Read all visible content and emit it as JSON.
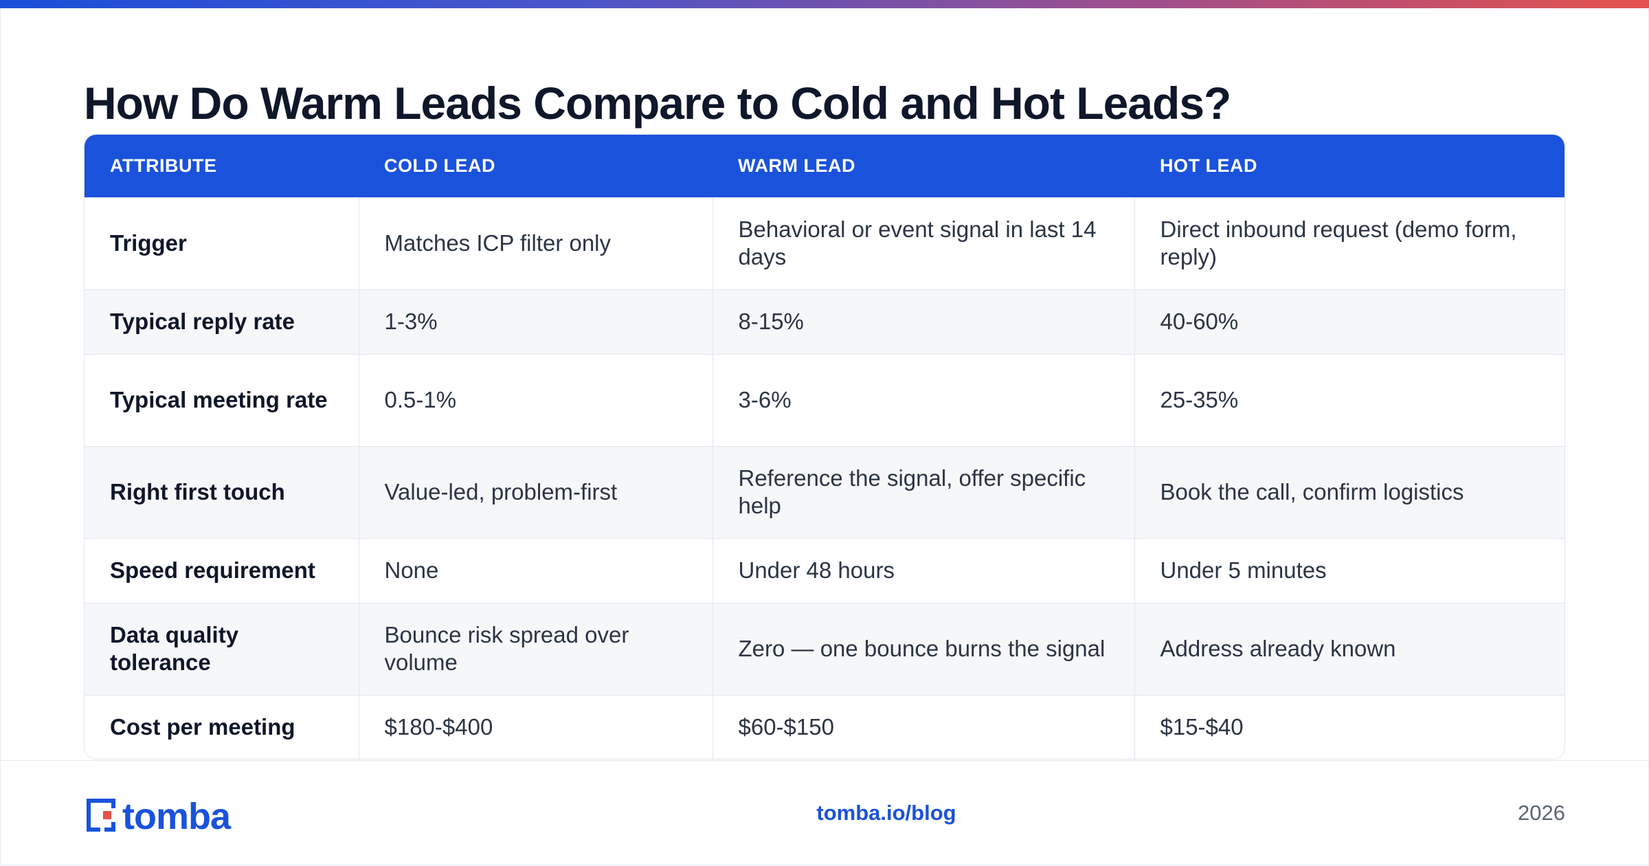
{
  "title": "How Do Warm Leads Compare to Cold and Hot Leads?",
  "table": {
    "headers": [
      "ATTRIBUTE",
      "COLD LEAD",
      "WARM LEAD",
      "HOT LEAD"
    ],
    "rows": [
      [
        "Trigger",
        "Matches ICP filter only",
        "Behavioral or event signal in last 14 days",
        "Direct inbound request (demo form, reply)"
      ],
      [
        "Typical reply rate",
        "1-3%",
        "8-15%",
        "40-60%"
      ],
      [
        "Typical meeting rate",
        "0.5-1%",
        "3-6%",
        "25-35%"
      ],
      [
        "Right first touch",
        "Value-led, problem-first",
        "Reference the signal, offer specific help",
        "Book the call, confirm logistics"
      ],
      [
        "Speed requirement",
        "None",
        "Under 48 hours",
        "Under 5 minutes"
      ],
      [
        "Data quality tolerance",
        "Bounce risk spread over volume",
        "Zero — one bounce burns the signal",
        "Address already known"
      ],
      [
        "Cost per meeting",
        "$180-$400",
        "$60-$150",
        "$15-$40"
      ]
    ]
  },
  "footer": {
    "logo_text": "tomba",
    "link": "tomba.io/blog",
    "year": "2026"
  },
  "colors": {
    "accent": "#1a52dc",
    "brand_red": "#e4524d",
    "title": "#0f172a"
  }
}
